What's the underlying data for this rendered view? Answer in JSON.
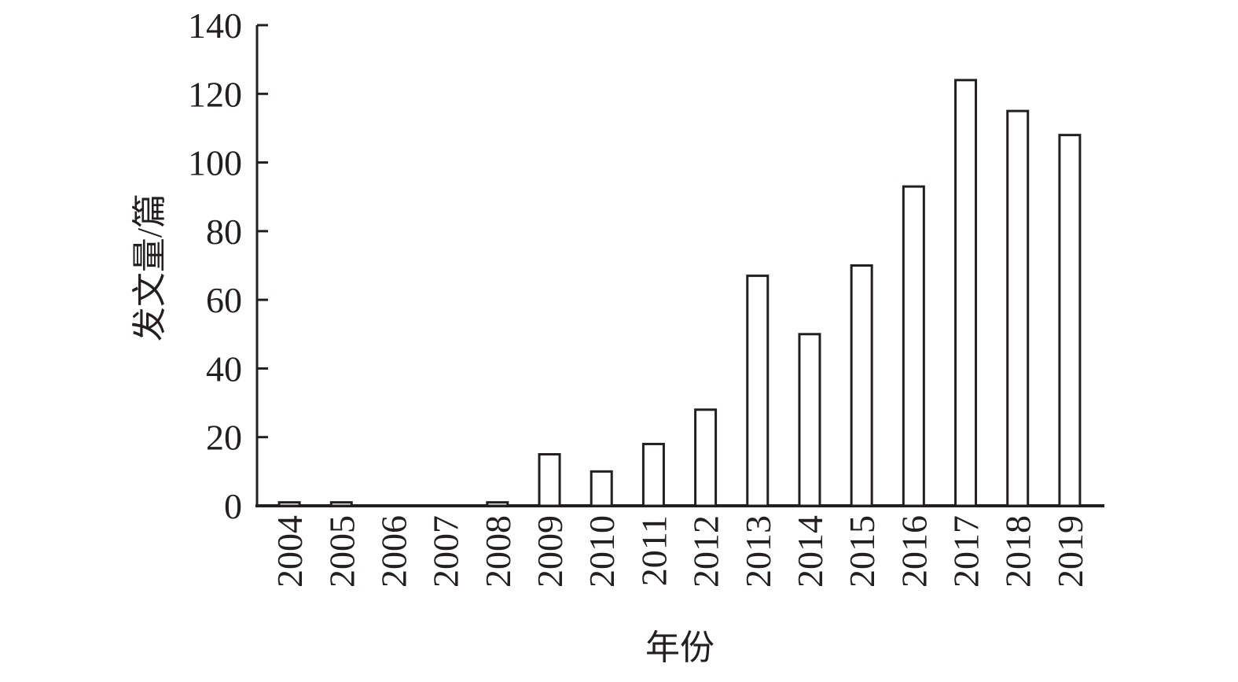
{
  "chart_data": {
    "type": "bar",
    "x_label": "年份",
    "y_label": "发文量/篇",
    "categories": [
      "2004",
      "2005",
      "2006",
      "2007",
      "2008",
      "2009",
      "2010",
      "2011",
      "2012",
      "2013",
      "2014",
      "2015",
      "2016",
      "2017",
      "2018",
      "2019"
    ],
    "values": [
      1,
      1,
      0,
      0,
      1,
      15,
      10,
      18,
      28,
      67,
      50,
      70,
      93,
      124,
      115,
      108
    ],
    "color": "#ffffff",
    "ylim": [
      0,
      140
    ],
    "yticks": [
      0,
      20,
      40,
      60,
      80,
      100,
      120,
      140
    ],
    "grid": false
  }
}
